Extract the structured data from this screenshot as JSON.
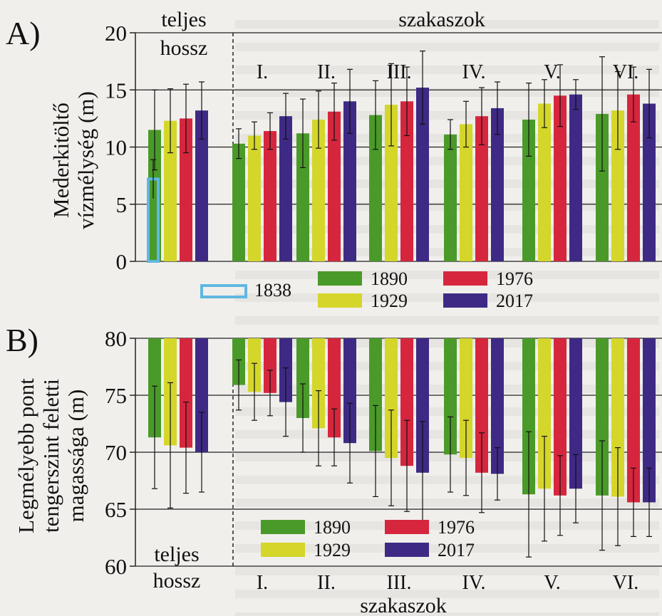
{
  "chart_data": [
    {
      "panel_label": "A)",
      "type": "bar",
      "ylabel_lines": [
        "Mederkitöltő",
        "vízmélység (m)"
      ],
      "ylim": [
        0,
        20
      ],
      "yticks": [
        0,
        5,
        10,
        15,
        20
      ],
      "header_left_lines": [
        "teljes",
        "hossz"
      ],
      "header_right": "szakaszok",
      "groups": [
        "teljes hossz",
        "I.",
        "II.",
        "III.",
        "IV.",
        "V.",
        "VI."
      ],
      "group_labels": [
        "",
        "I.",
        "II.",
        "III.",
        "IV.",
        "V.",
        "VI."
      ],
      "series": [
        {
          "name": "1838",
          "color": "#5fb8e0",
          "outline": true,
          "values": [
            7.2,
            null,
            null,
            null,
            null,
            null,
            null
          ],
          "err": [
            1.7,
            null,
            null,
            null,
            null,
            null,
            null
          ]
        },
        {
          "name": "1890",
          "color": "#4a9a2a",
          "values": [
            11.5,
            10.3,
            11.2,
            12.8,
            11.1,
            12.4,
            12.9
          ],
          "err": [
            3.5,
            1.3,
            3.0,
            3.0,
            1.3,
            3.2,
            5.0
          ]
        },
        {
          "name": "1929",
          "color": "#d4d62a",
          "values": [
            12.3,
            11.0,
            12.4,
            13.7,
            12.0,
            13.8,
            13.2
          ],
          "err": [
            2.8,
            1.2,
            2.5,
            3.6,
            2.0,
            2.1,
            3.4
          ]
        },
        {
          "name": "1976",
          "color": "#d6263e",
          "values": [
            12.5,
            11.4,
            13.1,
            14.0,
            12.7,
            14.5,
            14.6
          ],
          "err": [
            3.0,
            1.6,
            2.5,
            3.0,
            2.5,
            2.7,
            2.4
          ]
        },
        {
          "name": "2017",
          "color": "#3e2a84",
          "values": [
            13.2,
            12.7,
            14.0,
            15.2,
            13.4,
            14.6,
            13.8
          ],
          "err": [
            2.5,
            2.0,
            2.8,
            3.2,
            2.3,
            1.3,
            3.0
          ]
        }
      ],
      "legend": [
        {
          "name": "1838",
          "color": "#5fb8e0",
          "outline": true
        },
        {
          "name": "1890",
          "color": "#4a9a2a"
        },
        {
          "name": "1976",
          "color": "#d6263e"
        },
        {
          "name": "1929",
          "color": "#d4d62a"
        },
        {
          "name": "2017",
          "color": "#3e2a84"
        }
      ]
    },
    {
      "panel_label": "B)",
      "type": "bar",
      "ylabel_lines": [
        "Legmélyebb pont",
        "tengerszint feletti",
        "magassága (m)"
      ],
      "ylim": [
        60,
        80
      ],
      "yticks": [
        60,
        65,
        70,
        75,
        80
      ],
      "footer_left_lines": [
        "teljes",
        "hossz"
      ],
      "footer_right": "szakaszok",
      "groups": [
        "teljes hossz",
        "I.",
        "II.",
        "III.",
        "IV.",
        "V.",
        "VI."
      ],
      "group_labels": [
        "",
        "I.",
        "II.",
        "III.",
        "IV.",
        "V.",
        "VI."
      ],
      "series": [
        {
          "name": "1890",
          "color": "#4a9a2a",
          "values": [
            71.3,
            75.9,
            73.0,
            70.1,
            69.8,
            66.3,
            66.2
          ],
          "err": [
            4.5,
            2.2,
            3.0,
            4.0,
            3.3,
            5.5,
            4.8
          ]
        },
        {
          "name": "1929",
          "color": "#d4d62a",
          "values": [
            70.6,
            75.3,
            72.1,
            69.5,
            69.5,
            66.8,
            66.1
          ],
          "err": [
            5.5,
            2.5,
            3.3,
            4.2,
            3.3,
            4.6,
            4.3
          ]
        },
        {
          "name": "1976",
          "color": "#d6263e",
          "values": [
            70.4,
            75.2,
            71.3,
            68.8,
            68.2,
            66.2,
            65.6
          ],
          "err": [
            4.0,
            2.0,
            2.5,
            4.0,
            3.5,
            3.5,
            3.0
          ]
        },
        {
          "name": "2017",
          "color": "#3e2a84",
          "values": [
            70.0,
            74.4,
            70.8,
            68.2,
            68.1,
            66.8,
            65.6
          ],
          "err": [
            3.5,
            3.0,
            3.5,
            4.5,
            2.3,
            3.0,
            3.0
          ]
        }
      ],
      "legend": [
        {
          "name": "1890",
          "color": "#4a9a2a"
        },
        {
          "name": "1976",
          "color": "#d6263e"
        },
        {
          "name": "1929",
          "color": "#d4d62a"
        },
        {
          "name": "2017",
          "color": "#3e2a84"
        }
      ]
    }
  ]
}
